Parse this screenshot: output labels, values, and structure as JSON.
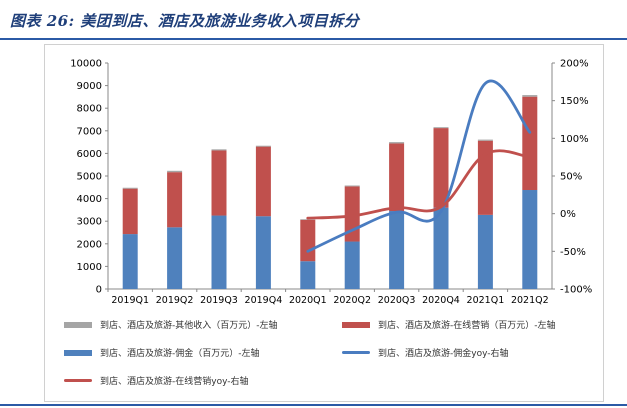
{
  "title": "图表 26: 美团到店、酒店及旅游业务收入项目拆分",
  "colors": {
    "other_income": "#a5a5a5",
    "online_marketing": "#c0504d",
    "commission": "#4f81bd",
    "commission_yoy": "#4a7cc0",
    "online_marketing_yoy": "#c0504d"
  },
  "chart_data": {
    "type": "bar",
    "stacked": true,
    "categories": [
      "2019Q1",
      "2019Q2",
      "2019Q3",
      "2019Q4",
      "2020Q1",
      "2020Q2",
      "2020Q3",
      "2020Q4",
      "2021Q1",
      "2021Q2"
    ],
    "left_axis": {
      "min": 0,
      "max": 10000,
      "step": 1000,
      "tick_labels": [
        "0",
        "1000",
        "2000",
        "3000",
        "4000",
        "5000",
        "6000",
        "7000",
        "8000",
        "9000",
        "10000"
      ]
    },
    "right_axis": {
      "min": -100,
      "max": 200,
      "step": 50,
      "tick_labels": [
        "-100%",
        "-50%",
        "0%",
        "50%",
        "100%",
        "150%",
        "200%"
      ]
    },
    "series": [
      {
        "name": "到店、酒店及旅游-佣金（百万元）-左轴",
        "type": "bar",
        "axis": "left",
        "values": [
          2430,
          2730,
          3250,
          3220,
          1230,
          2100,
          3450,
          3600,
          3280,
          4380
        ]
      },
      {
        "name": "到店、酒店及旅游-在线营销（百万元）-左轴",
        "type": "bar",
        "axis": "left",
        "values": [
          2010,
          2440,
          2880,
          3080,
          1830,
          2440,
          2990,
          3520,
          3280,
          4130
        ]
      },
      {
        "name": "到店、酒店及旅游-其他收入（百万元）-左轴",
        "type": "bar",
        "axis": "left",
        "values": [
          40,
          60,
          50,
          40,
          30,
          40,
          60,
          40,
          50,
          70
        ]
      },
      {
        "name": "到店、酒店及旅游-佣金yoy-右轴",
        "type": "line",
        "axis": "right",
        "values": [
          null,
          null,
          null,
          null,
          -50,
          -22,
          2,
          3,
          173,
          108
        ]
      },
      {
        "name": "到店、酒店及旅游-在线营销yoy-右轴",
        "type": "line",
        "axis": "right",
        "values": [
          null,
          null,
          null,
          null,
          -6,
          -3,
          8,
          9,
          79,
          75
        ]
      }
    ],
    "legend": [
      {
        "label": "到店、酒店及旅游-其他收入（百万元）-左轴",
        "kind": "rect",
        "color_key": "other_income"
      },
      {
        "label": "到店、酒店及旅游-在线营销（百万元）-左轴",
        "kind": "rect",
        "color_key": "online_marketing"
      },
      {
        "label": "到店、酒店及旅游-佣金（百万元）-左轴",
        "kind": "rect",
        "color_key": "commission"
      },
      {
        "label": "到店、酒店及旅游-佣金yoy-右轴",
        "kind": "line",
        "color_key": "commission_yoy"
      },
      {
        "label": "到店、酒店及旅游-在线营销yoy-右轴",
        "kind": "line",
        "color_key": "online_marketing_yoy"
      }
    ],
    "legend_position": "bottom",
    "grid": false
  }
}
